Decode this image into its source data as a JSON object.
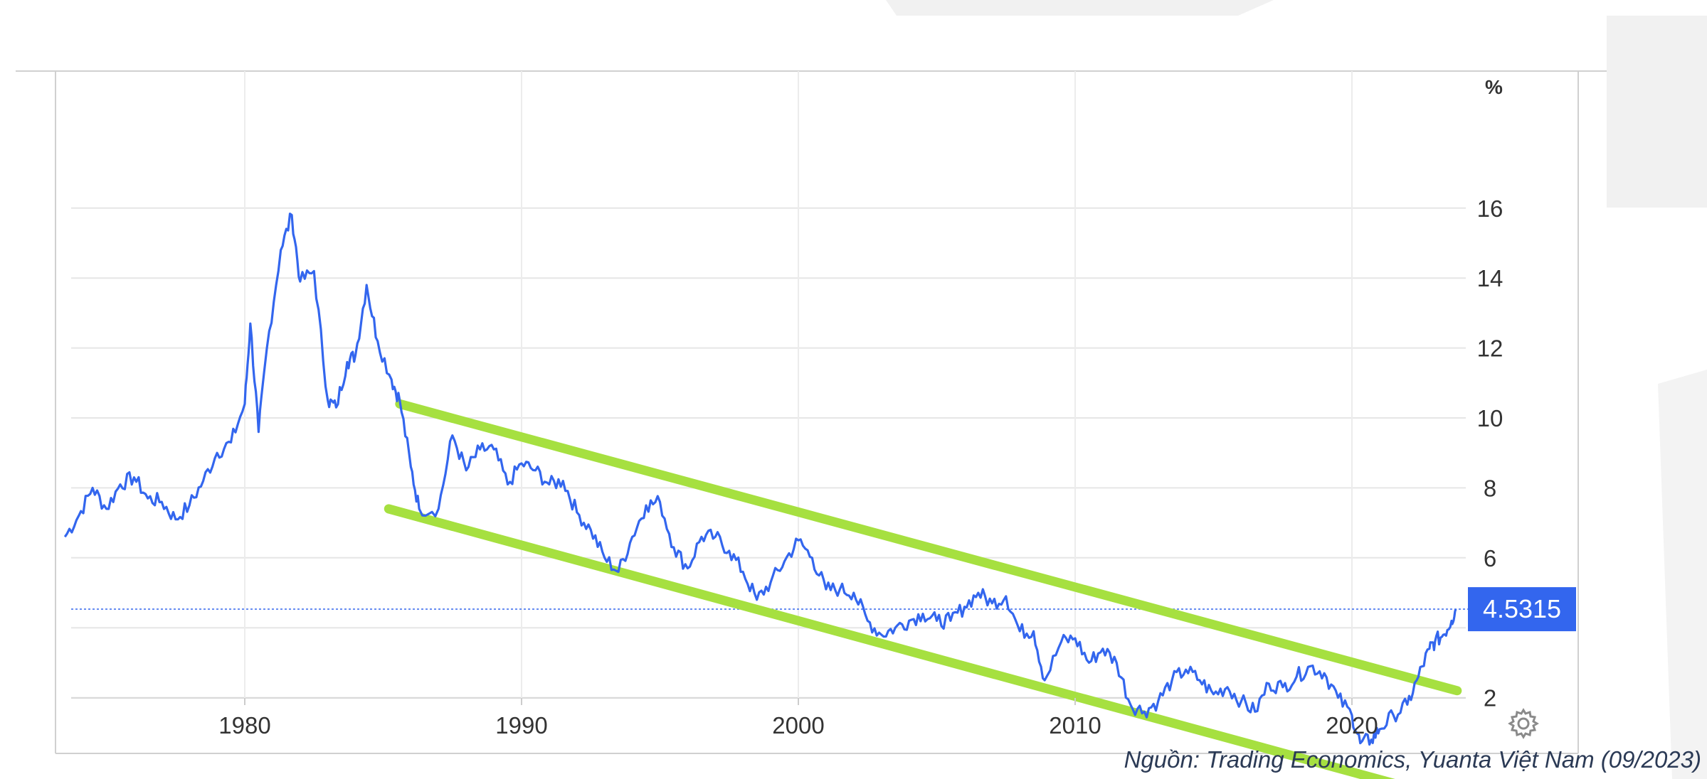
{
  "chart_data": {
    "type": "line",
    "title": "",
    "xlabel": "",
    "ylabel": "%",
    "xlim": [
      1973.4,
      2023.9
    ],
    "ylim": [
      0,
      17.6
    ],
    "x_ticks": [
      1980,
      1990,
      2000,
      2010,
      2020
    ],
    "y_ticks": [
      2,
      6,
      8,
      10,
      12,
      14,
      16
    ],
    "grid": true,
    "last_value": 4.5315,
    "last_value_label": "4.5315",
    "line_color": "#3366ee",
    "channel_color": "#a6e040",
    "series": [
      {
        "values": [
          [
            1973.5,
            6.6
          ],
          [
            1974.0,
            7.2
          ],
          [
            1974.5,
            8.0
          ],
          [
            1975.0,
            7.4
          ],
          [
            1975.5,
            8.1
          ],
          [
            1976.0,
            8.3
          ],
          [
            1976.5,
            7.7
          ],
          [
            1977.0,
            7.6
          ],
          [
            1977.5,
            7.1
          ],
          [
            1978.0,
            7.5
          ],
          [
            1978.5,
            8.2
          ],
          [
            1979.0,
            9.0
          ],
          [
            1979.5,
            9.3
          ],
          [
            1980.0,
            10.4
          ],
          [
            1980.2,
            12.7
          ],
          [
            1980.5,
            9.6
          ],
          [
            1980.8,
            12.0
          ],
          [
            1981.3,
            14.8
          ],
          [
            1981.7,
            15.8
          ],
          [
            1982.0,
            13.9
          ],
          [
            1982.5,
            14.2
          ],
          [
            1983.0,
            10.5
          ],
          [
            1983.3,
            10.3
          ],
          [
            1983.7,
            11.6
          ],
          [
            1984.0,
            11.8
          ],
          [
            1984.4,
            13.8
          ],
          [
            1984.8,
            12.2
          ],
          [
            1985.3,
            11.1
          ],
          [
            1985.6,
            10.5
          ],
          [
            1986.0,
            8.6
          ],
          [
            1986.3,
            7.4
          ],
          [
            1987.0,
            7.4
          ],
          [
            1987.5,
            9.5
          ],
          [
            1988.0,
            8.5
          ],
          [
            1988.5,
            9.1
          ],
          [
            1989.0,
            9.1
          ],
          [
            1989.5,
            8.1
          ],
          [
            1990.0,
            8.7
          ],
          [
            1990.5,
            8.5
          ],
          [
            1991.0,
            8.1
          ],
          [
            1991.5,
            8.2
          ],
          [
            1992.0,
            7.3
          ],
          [
            1992.5,
            6.8
          ],
          [
            1993.0,
            6.0
          ],
          [
            1993.5,
            5.6
          ],
          [
            1994.0,
            6.6
          ],
          [
            1994.5,
            7.5
          ],
          [
            1995.0,
            7.6
          ],
          [
            1995.5,
            6.3
          ],
          [
            1996.0,
            5.7
          ],
          [
            1996.5,
            6.6
          ],
          [
            1997.0,
            6.6
          ],
          [
            1997.5,
            6.2
          ],
          [
            1998.0,
            5.6
          ],
          [
            1998.5,
            4.8
          ],
          [
            1999.0,
            5.3
          ],
          [
            1999.5,
            5.9
          ],
          [
            2000.0,
            6.5
          ],
          [
            2000.5,
            6.0
          ],
          [
            2001.0,
            5.1
          ],
          [
            2001.5,
            5.1
          ],
          [
            2002.0,
            5.0
          ],
          [
            2002.5,
            4.2
          ],
          [
            2003.0,
            3.8
          ],
          [
            2003.5,
            4.0
          ],
          [
            2004.0,
            4.2
          ],
          [
            2004.5,
            4.4
          ],
          [
            2005.0,
            4.2
          ],
          [
            2005.5,
            4.2
          ],
          [
            2006.0,
            4.6
          ],
          [
            2006.5,
            5.0
          ],
          [
            2007.0,
            4.7
          ],
          [
            2007.5,
            4.9
          ],
          [
            2008.0,
            3.9
          ],
          [
            2008.5,
            3.9
          ],
          [
            2008.9,
            2.5
          ],
          [
            2009.5,
            3.6
          ],
          [
            2010.0,
            3.7
          ],
          [
            2010.5,
            3.0
          ],
          [
            2011.0,
            3.4
          ],
          [
            2011.5,
            3.0
          ],
          [
            2012.0,
            1.8
          ],
          [
            2012.5,
            1.6
          ],
          [
            2013.0,
            1.9
          ],
          [
            2013.5,
            2.5
          ],
          [
            2014.0,
            2.8
          ],
          [
            2014.5,
            2.5
          ],
          [
            2015.0,
            2.1
          ],
          [
            2015.5,
            2.3
          ],
          [
            2016.0,
            1.9
          ],
          [
            2016.5,
            1.6
          ],
          [
            2017.0,
            2.4
          ],
          [
            2017.5,
            2.3
          ],
          [
            2018.0,
            2.6
          ],
          [
            2018.5,
            2.9
          ],
          [
            2019.0,
            2.7
          ],
          [
            2019.5,
            2.0
          ],
          [
            2020.0,
            1.5
          ],
          [
            2020.3,
            0.7
          ],
          [
            2020.7,
            0.8
          ],
          [
            2021.0,
            1.1
          ],
          [
            2021.5,
            1.5
          ],
          [
            2022.0,
            1.8
          ],
          [
            2022.4,
            2.6
          ],
          [
            2022.8,
            3.4
          ],
          [
            2023.0,
            3.6
          ],
          [
            2023.3,
            3.8
          ],
          [
            2023.6,
            4.2
          ],
          [
            2023.75,
            4.5315
          ]
        ]
      }
    ],
    "channel_lines": [
      {
        "from": [
          1985.6,
          10.4
        ],
        "to": [
          2023.8,
          2.2
        ]
      },
      {
        "from": [
          1985.2,
          7.4
        ],
        "to": [
          2022.2,
          -0.6
        ]
      }
    ]
  },
  "source": "Nguồn: Trading Economics, Yuanta Việt Nam (09/2023)",
  "controls": {
    "settings_icon": "gear-icon"
  }
}
